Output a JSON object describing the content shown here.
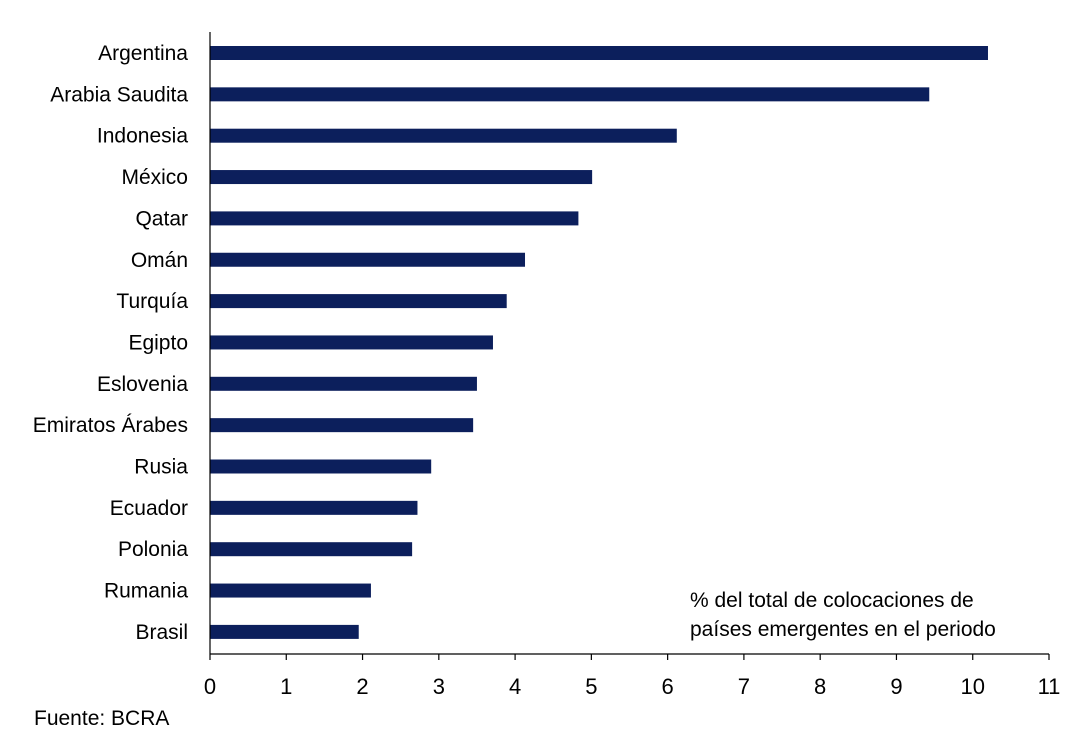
{
  "chart_data": {
    "type": "bar",
    "orientation": "horizontal",
    "title": "",
    "xlabel": "",
    "ylabel": "",
    "categories": [
      "Argentina",
      "Arabia Saudita",
      "Indonesia",
      "México",
      "Qatar",
      "Omán",
      "Turquía",
      "Egipto",
      "Eslovenia",
      "Emiratos Árabes",
      "Rusia",
      "Ecuador",
      "Polonia",
      "Rumania",
      "Brasil"
    ],
    "values": [
      10.2,
      9.43,
      6.12,
      5.01,
      4.83,
      4.13,
      3.89,
      3.71,
      3.5,
      3.45,
      2.9,
      2.72,
      2.65,
      2.11,
      1.95
    ],
    "xlim": [
      0,
      11
    ],
    "xticks": [
      "0",
      "1",
      "2",
      "3",
      "4",
      "5",
      "6",
      "7",
      "8",
      "9",
      "10",
      "11"
    ],
    "grid": false,
    "legend": null,
    "bar_color": "#0c1f5c",
    "annotation": {
      "lines": [
        "% del total de colocaciones de",
        "países emergentes en el periodo"
      ]
    }
  },
  "source": "Fuente: BCRA"
}
